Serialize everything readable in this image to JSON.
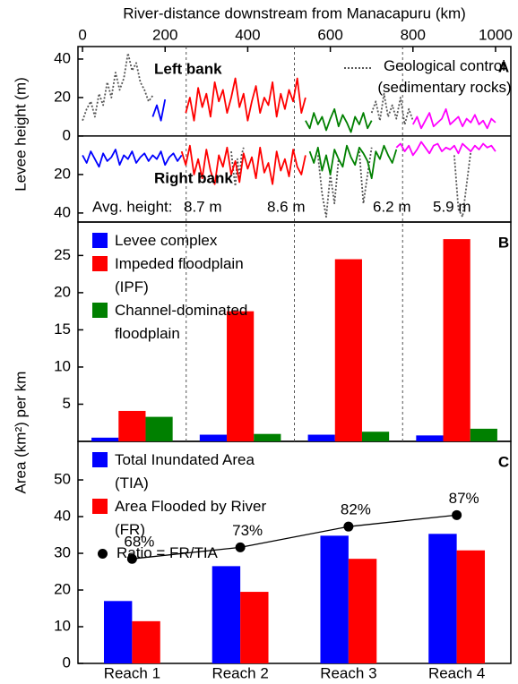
{
  "chart_data": [
    {
      "type": "line",
      "panel": "A",
      "xlabel": "River-distance downstream from Manacapuru (km)",
      "ylabel": "Levee height (m)",
      "xlim": [
        -11,
        1037
      ],
      "xticks": [
        0,
        200,
        400,
        600,
        800,
        1000
      ],
      "ylim": [
        -44.7,
        46.5
      ],
      "yticks": [
        40,
        20,
        0,
        {
          "value": -20,
          "label": "20"
        },
        {
          "value": -40,
          "label": "40"
        }
      ],
      "left_bank": "Left bank",
      "right_bank": "Right bank",
      "avg_label": "Avg. height:",
      "avg_heights": [
        {
          "text": "8.7 m",
          "color": "#0000ff"
        },
        {
          "text": "8.6 m",
          "color": "#ff0000"
        },
        {
          "text": "6.2 m",
          "color": "#008000"
        },
        {
          "text": "5.9 m",
          "color": "#ff00ff"
        }
      ],
      "series": [
        {
          "name": "Geological control (sedimentary rocks)",
          "color": "#555555",
          "dashed": true,
          "x": [
            0,
            10,
            20,
            30,
            40,
            50,
            60,
            70,
            80,
            90,
            100,
            110,
            120,
            130,
            140,
            150,
            160,
            170,
            175,
            700,
            710,
            720,
            730,
            740,
            750,
            760,
            770,
            780,
            790,
            800,
            805,
            360,
            365,
            370,
            375,
            380,
            385,
            390,
            395,
            570,
            580,
            590,
            600,
            610,
            620,
            625,
            670,
            680,
            690,
            700,
            705,
            900,
            910,
            920,
            930,
            940
          ],
          "values": [
            8,
            14,
            18,
            10,
            22,
            16,
            28,
            20,
            33,
            24,
            30,
            43,
            34,
            38,
            28,
            24,
            18,
            21,
            null,
            12,
            18,
            8,
            22,
            10,
            16,
            9,
            20,
            6,
            14,
            8,
            null,
            -8,
            -18,
            -26,
            -12,
            -22,
            -10,
            -6,
            null,
            -10,
            -30,
            -42,
            -20,
            -35,
            -12,
            null,
            -8,
            -35,
            -20,
            -6,
            null,
            -10,
            -38,
            -42,
            -25,
            -8
          ]
        },
        {
          "color": "#0000ff",
          "x": [
            170,
            180,
            190,
            200
          ],
          "values": [
            10,
            16,
            8,
            19
          ]
        },
        {
          "color": "#ff0000",
          "x": [
            250,
            260,
            270,
            280,
            290,
            300,
            310,
            320,
            330,
            340,
            350,
            360,
            370,
            380,
            390,
            400,
            410,
            420,
            430,
            440,
            450,
            460,
            470,
            480,
            490,
            500,
            510,
            520,
            530,
            540
          ],
          "values": [
            12,
            20,
            8,
            25,
            15,
            22,
            10,
            28,
            18,
            24,
            12,
            20,
            30,
            15,
            22,
            8,
            18,
            26,
            12,
            20,
            16,
            28,
            10,
            22,
            14,
            24,
            18,
            30,
            12,
            20
          ]
        },
        {
          "color": "#008000",
          "x": [
            540,
            550,
            560,
            570,
            580,
            590,
            600,
            610,
            620,
            630,
            640,
            650,
            660,
            670,
            680,
            690,
            700
          ],
          "values": [
            8,
            4,
            12,
            6,
            10,
            3,
            9,
            14,
            5,
            11,
            7,
            2,
            10,
            6,
            12,
            4,
            8
          ]
        },
        {
          "color": "#ff00ff",
          "x": [
            800,
            810,
            820,
            830,
            840,
            850,
            860,
            870,
            880,
            890,
            900,
            910,
            920,
            930,
            940,
            950,
            960,
            970,
            980,
            990,
            1000
          ],
          "values": [
            6,
            10,
            4,
            8,
            12,
            5,
            7,
            9,
            14,
            6,
            8,
            10,
            5,
            9,
            7,
            11,
            6,
            8,
            4,
            9,
            7
          ]
        },
        {
          "color": "#0000ff",
          "x": [
            0,
            10,
            20,
            30,
            40,
            50,
            60,
            70,
            80,
            90,
            100,
            110,
            120,
            130,
            140,
            150,
            160,
            170,
            180,
            190,
            200,
            210,
            220,
            230,
            240
          ],
          "values": [
            -10,
            -14,
            -8,
            -12,
            -16,
            -9,
            -13,
            -11,
            -7,
            -15,
            -10,
            -12,
            -8,
            -14,
            -11,
            -9,
            -13,
            -10,
            -12,
            -8,
            -15,
            -11,
            -9,
            -13,
            -10
          ]
        },
        {
          "color": "#ff0000",
          "x": [
            240,
            250,
            260,
            270,
            280,
            290,
            300,
            310,
            320,
            330,
            340,
            350,
            360,
            370,
            380,
            390,
            400,
            410,
            420,
            430,
            440,
            450,
            460,
            470,
            480,
            490,
            500,
            510,
            520,
            530,
            540
          ],
          "values": [
            -8,
            -15,
            -5,
            -20,
            -12,
            -22,
            -7,
            -18,
            -25,
            -10,
            -16,
            -6,
            -20,
            -13,
            -24,
            -9,
            -17,
            -11,
            -22,
            -6,
            -19,
            -14,
            -25,
            -8,
            -18,
            -12,
            -21,
            -7,
            -16,
            -20,
            -10
          ]
        },
        {
          "color": "#008000",
          "x": [
            550,
            560,
            570,
            580,
            590,
            600,
            610,
            620,
            630,
            640,
            650,
            660,
            670,
            680,
            690,
            700,
            710,
            720,
            730,
            740,
            750,
            760
          ],
          "values": [
            -8,
            -14,
            -6,
            -18,
            -10,
            -20,
            -7,
            -12,
            -16,
            -5,
            -11,
            -15,
            -6,
            -9,
            -13,
            -22,
            -8,
            -12,
            -5,
            -10,
            -14,
            -7
          ]
        },
        {
          "color": "#ff00ff",
          "x": [
            760,
            770,
            780,
            790,
            800,
            810,
            820,
            830,
            840,
            850,
            860,
            870,
            880,
            890,
            900,
            910,
            920,
            930,
            940,
            950,
            960,
            970,
            980,
            990,
            1000
          ],
          "values": [
            -6,
            -4,
            -8,
            -5,
            -10,
            -7,
            -3,
            -6,
            -9,
            -5,
            -4,
            -8,
            -6,
            -7,
            -5,
            -9,
            -4,
            -6,
            -8,
            -5,
            -7,
            -4,
            -6,
            -5,
            -8
          ]
        }
      ]
    },
    {
      "type": "bar",
      "panel": "B",
      "ylabel": "Area (km²) per km",
      "ylim": [
        0,
        29.5
      ],
      "yticks": [
        5,
        10,
        15,
        20,
        25
      ],
      "series": [
        {
          "name": "Levee complex",
          "color": "#0000ff",
          "values": [
            0.5,
            0.9,
            0.9,
            0.8
          ]
        },
        {
          "name": "Impeded floodplain (IPF)",
          "color": "#ff0000",
          "values": [
            4.1,
            17.5,
            24.5,
            27.2
          ]
        },
        {
          "name": "Channel-dominated floodplain",
          "color": "#008000",
          "values": [
            3.3,
            1.0,
            1.3,
            1.7
          ]
        }
      ]
    },
    {
      "type": "bar",
      "panel": "C",
      "categories": [
        "Reach 1",
        "Reach 2",
        "Reach 3",
        "Reach 4"
      ],
      "ylim": [
        0,
        60.5
      ],
      "yticks": [
        0,
        10,
        20,
        30,
        40,
        50
      ],
      "y2lim": [
        22.6,
        119
      ],
      "series": [
        {
          "name": "Total Inundated Area (TIA)",
          "color": "#0000ff",
          "values": [
            17,
            26.5,
            34.8,
            35.3
          ]
        },
        {
          "name": "Area Flooded by River (FR)",
          "color": "#ff0000",
          "values": [
            11.5,
            19.5,
            28.5,
            30.8
          ]
        },
        {
          "name": "Ratio = FR/TIA",
          "color": "#000000",
          "type": "line",
          "axis": "y2",
          "values": [
            68,
            73,
            82,
            87
          ],
          "value_labels": [
            "68%",
            "73%",
            "82%",
            "87%"
          ]
        }
      ]
    }
  ]
}
